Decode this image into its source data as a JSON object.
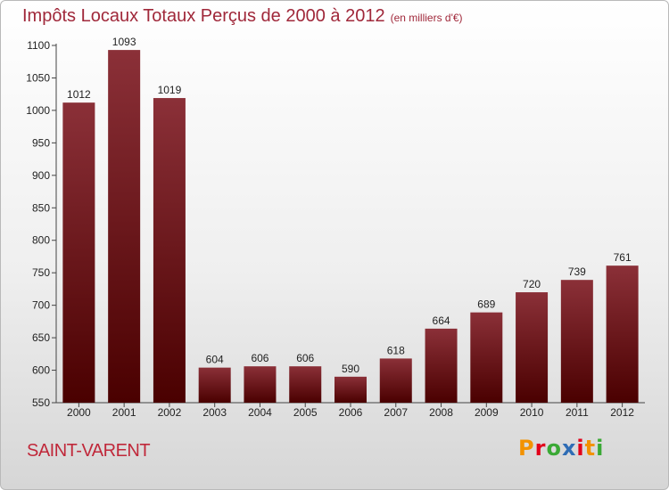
{
  "header": {
    "title": "Impôts Locaux Totaux Perçus de 2000 à 2012",
    "unit": "(en milliers d'€)"
  },
  "footer": {
    "city": "SAINT-VARENT",
    "brand": "Proxiti"
  },
  "colors": {
    "bar_top": "#8b3038",
    "bar_bottom": "#4a0000",
    "title": "#a0283a",
    "brand_letters": [
      "#f39200",
      "#e2001a",
      "#3aa935",
      "#2f6db5",
      "#e2001a",
      "#f39200",
      "#3aa935"
    ]
  },
  "chart_data": {
    "type": "bar",
    "title": "Impôts Locaux Totaux Perçus de 2000 à 2012",
    "subtitle": "(en milliers d'€)",
    "categories": [
      "2000",
      "2001",
      "2002",
      "2003",
      "2004",
      "2005",
      "2006",
      "2007",
      "2008",
      "2009",
      "2010",
      "2011",
      "2012"
    ],
    "values": [
      1012,
      1093,
      1019,
      604,
      606,
      606,
      590,
      618,
      664,
      689,
      720,
      739,
      761
    ],
    "ylim": [
      550,
      1100
    ],
    "yticks": [
      550,
      600,
      650,
      700,
      750,
      800,
      850,
      900,
      950,
      1000,
      1050,
      1100
    ],
    "grid": false,
    "xlabel": "",
    "ylabel": ""
  }
}
